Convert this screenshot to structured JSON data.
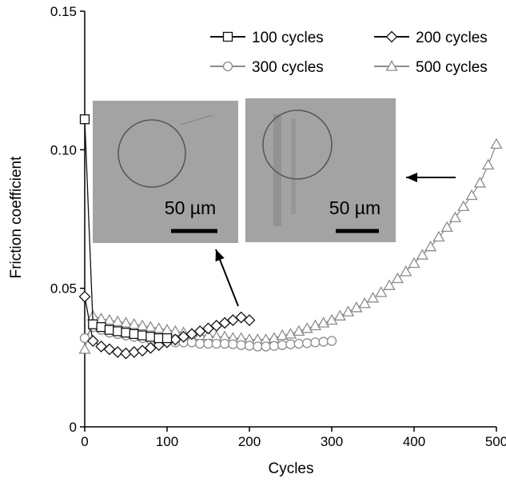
{
  "chart_data": {
    "type": "line",
    "title": "",
    "xlabel": "Cycles",
    "ylabel": "Friction coefficient",
    "xlim": [
      0,
      500
    ],
    "ylim": [
      0,
      0.15
    ],
    "xticks": [
      0,
      100,
      200,
      300,
      400,
      500
    ],
    "xtick_labels": [
      "0",
      "100",
      "200",
      "300",
      "400",
      "500"
    ],
    "yticks": [
      0,
      0.05,
      0.1,
      0.15
    ],
    "ytick_labels": [
      "0",
      "0.05",
      "0.10",
      "0.15"
    ],
    "grid": false,
    "legend_position": "top-right",
    "series": [
      {
        "name": "100 cycles",
        "marker": "square",
        "color": "#111111",
        "x": [
          0,
          10,
          20,
          30,
          40,
          50,
          60,
          70,
          80,
          90,
          100
        ],
        "y": [
          0.111,
          0.037,
          0.036,
          0.035,
          0.0345,
          0.034,
          0.0335,
          0.033,
          0.0325,
          0.032,
          0.032
        ]
      },
      {
        "name": "200 cycles",
        "marker": "diamond",
        "color": "#111111",
        "x": [
          0,
          10,
          20,
          30,
          40,
          50,
          60,
          70,
          80,
          90,
          100,
          110,
          120,
          130,
          140,
          150,
          160,
          170,
          180,
          190,
          200
        ],
        "y": [
          0.047,
          0.031,
          0.029,
          0.028,
          0.027,
          0.0265,
          0.027,
          0.0275,
          0.0285,
          0.0295,
          0.0305,
          0.0315,
          0.0325,
          0.0335,
          0.0345,
          0.0355,
          0.0365,
          0.0375,
          0.0385,
          0.0395,
          0.0385
        ]
      },
      {
        "name": "300 cycles",
        "marker": "circle",
        "color": "#8c8c8c",
        "x": [
          0,
          10,
          20,
          30,
          40,
          50,
          60,
          70,
          80,
          90,
          100,
          110,
          120,
          130,
          140,
          150,
          160,
          170,
          180,
          190,
          200,
          210,
          220,
          230,
          240,
          250,
          260,
          270,
          280,
          290,
          300
        ],
        "y": [
          0.032,
          0.036,
          0.035,
          0.034,
          0.0335,
          0.033,
          0.0325,
          0.032,
          0.0315,
          0.031,
          0.031,
          0.0305,
          0.0305,
          0.0305,
          0.03,
          0.03,
          0.03,
          0.03,
          0.0298,
          0.0295,
          0.0293,
          0.029,
          0.029,
          0.0292,
          0.0295,
          0.0298,
          0.03,
          0.0302,
          0.0305,
          0.0307,
          0.031
        ]
      },
      {
        "name": "500 cycles",
        "marker": "triangle",
        "color": "#8c8c8c",
        "x": [
          0,
          10,
          20,
          30,
          40,
          50,
          60,
          70,
          80,
          90,
          100,
          110,
          120,
          130,
          140,
          150,
          160,
          170,
          180,
          190,
          200,
          210,
          220,
          230,
          240,
          250,
          260,
          270,
          280,
          290,
          300,
          310,
          320,
          330,
          340,
          350,
          360,
          370,
          380,
          390,
          400,
          410,
          420,
          430,
          440,
          450,
          460,
          470,
          480,
          490,
          500
        ],
        "y": [
          0.028,
          0.04,
          0.039,
          0.0385,
          0.038,
          0.0375,
          0.037,
          0.0365,
          0.036,
          0.0355,
          0.035,
          0.0345,
          0.034,
          0.0335,
          0.033,
          0.033,
          0.0325,
          0.0325,
          0.032,
          0.032,
          0.0315,
          0.0315,
          0.0315,
          0.032,
          0.033,
          0.0335,
          0.0345,
          0.0355,
          0.0365,
          0.0375,
          0.0385,
          0.04,
          0.0415,
          0.043,
          0.0445,
          0.0465,
          0.0485,
          0.051,
          0.0535,
          0.056,
          0.059,
          0.062,
          0.065,
          0.0685,
          0.072,
          0.0755,
          0.0795,
          0.0835,
          0.088,
          0.0945,
          0.102
        ]
      }
    ],
    "insets": [
      {
        "scale_label": "50 µm",
        "points_to": "200 cycles"
      },
      {
        "scale_label": "50 µm",
        "points_to": "500 cycles"
      }
    ]
  }
}
